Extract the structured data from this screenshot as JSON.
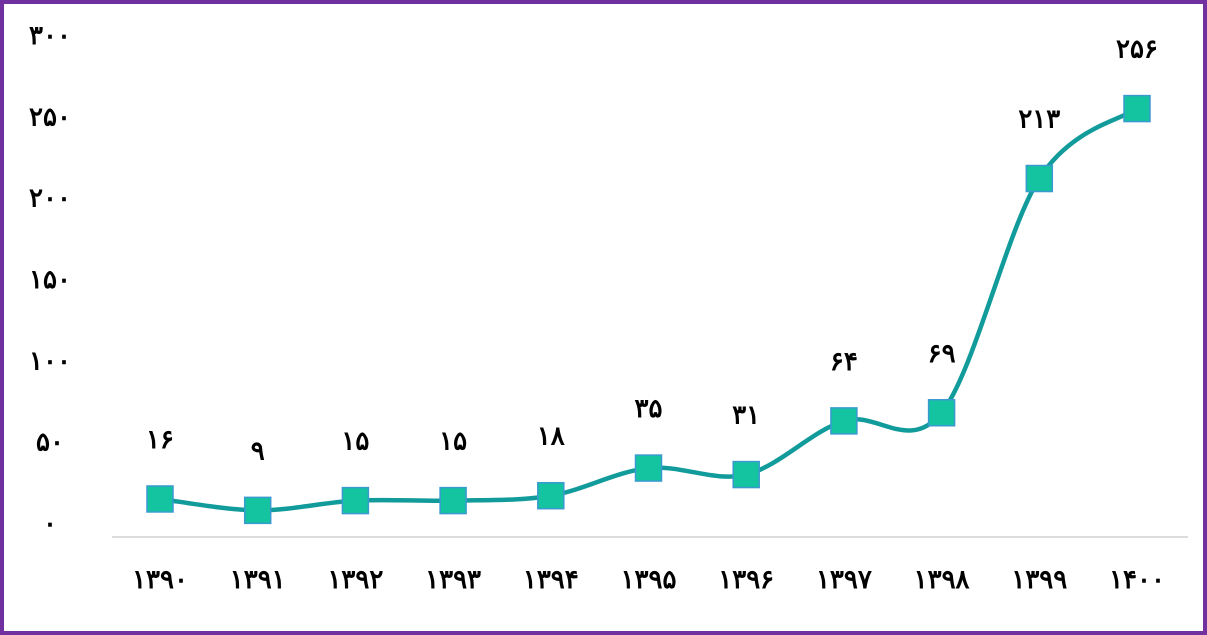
{
  "chart_data": {
    "type": "line",
    "categories": [
      "۱۳۹۰",
      "۱۳۹۱",
      "۱۳۹۲",
      "۱۳۹۳",
      "۱۳۹۴",
      "۱۳۹۵",
      "۱۳۹۶",
      "۱۳۹۷",
      "۱۳۹۸",
      "۱۳۹۹",
      "۱۴۰۰"
    ],
    "values": [
      16,
      9,
      15,
      15,
      18,
      35,
      31,
      64,
      69,
      213,
      256
    ],
    "value_labels": [
      "۱۶",
      "۹",
      "۱۵",
      "۱۵",
      "۱۸",
      "۳۵",
      "۳۱",
      "۶۴",
      "۶۹",
      "۲۱۳",
      "۲۵۶"
    ],
    "color": "#129b9b",
    "marker_color": "#14c4a0",
    "ylim": [
      0,
      300
    ],
    "yticks": [
      {
        "value": 0,
        "label": "۰"
      },
      {
        "value": 50,
        "label": "۵۰"
      },
      {
        "value": 100,
        "label": "۱۰۰"
      },
      {
        "value": 150,
        "label": "۱۵۰"
      },
      {
        "value": 200,
        "label": "۲۰۰"
      },
      {
        "value": 250,
        "label": "۲۵۰"
      },
      {
        "value": 300,
        "label": "۳۰۰"
      }
    ],
    "grid": false
  }
}
